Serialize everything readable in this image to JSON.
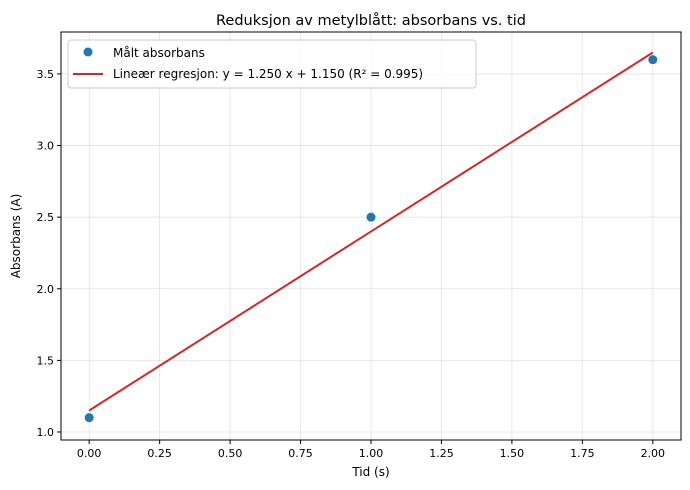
{
  "chart_data": {
    "type": "scatter",
    "title": "Reduksjon av metylblått: absorbans vs. tid",
    "xlabel": "Tid (s)",
    "ylabel": "Absorbans (A)",
    "xlim": [
      -0.1,
      2.1
    ],
    "ylim": [
      0.944,
      3.793
    ],
    "xticks": [
      0,
      0.25,
      0.5,
      0.75,
      1,
      1.25,
      1.5,
      1.75,
      2
    ],
    "xtick_labels": [
      "0.00",
      "0.25",
      "0.50",
      "0.75",
      "1.00",
      "1.25",
      "1.50",
      "1.75",
      "2.00"
    ],
    "yticks": [
      1,
      1.5,
      2,
      2.5,
      3,
      3.5
    ],
    "ytick_labels": [
      "1.0",
      "1.5",
      "2.0",
      "2.5",
      "3.0",
      "3.5"
    ],
    "grid": true,
    "legend_placement": "top-left",
    "series": [
      {
        "name": "Målt absorbans",
        "kind": "scatter",
        "color": "#1f77b4",
        "x": [
          0,
          1,
          2
        ],
        "y": [
          1.1,
          2.5,
          3.6
        ]
      },
      {
        "name": "Lineær regresjon: y = 1.250 x + 1.150 (R² = 0.995)",
        "kind": "line",
        "color": "#d62728",
        "x": [
          0,
          2
        ],
        "y": [
          1.15,
          3.65
        ],
        "slope": 1.25,
        "intercept": 1.15,
        "r2": 0.995
      }
    ]
  }
}
